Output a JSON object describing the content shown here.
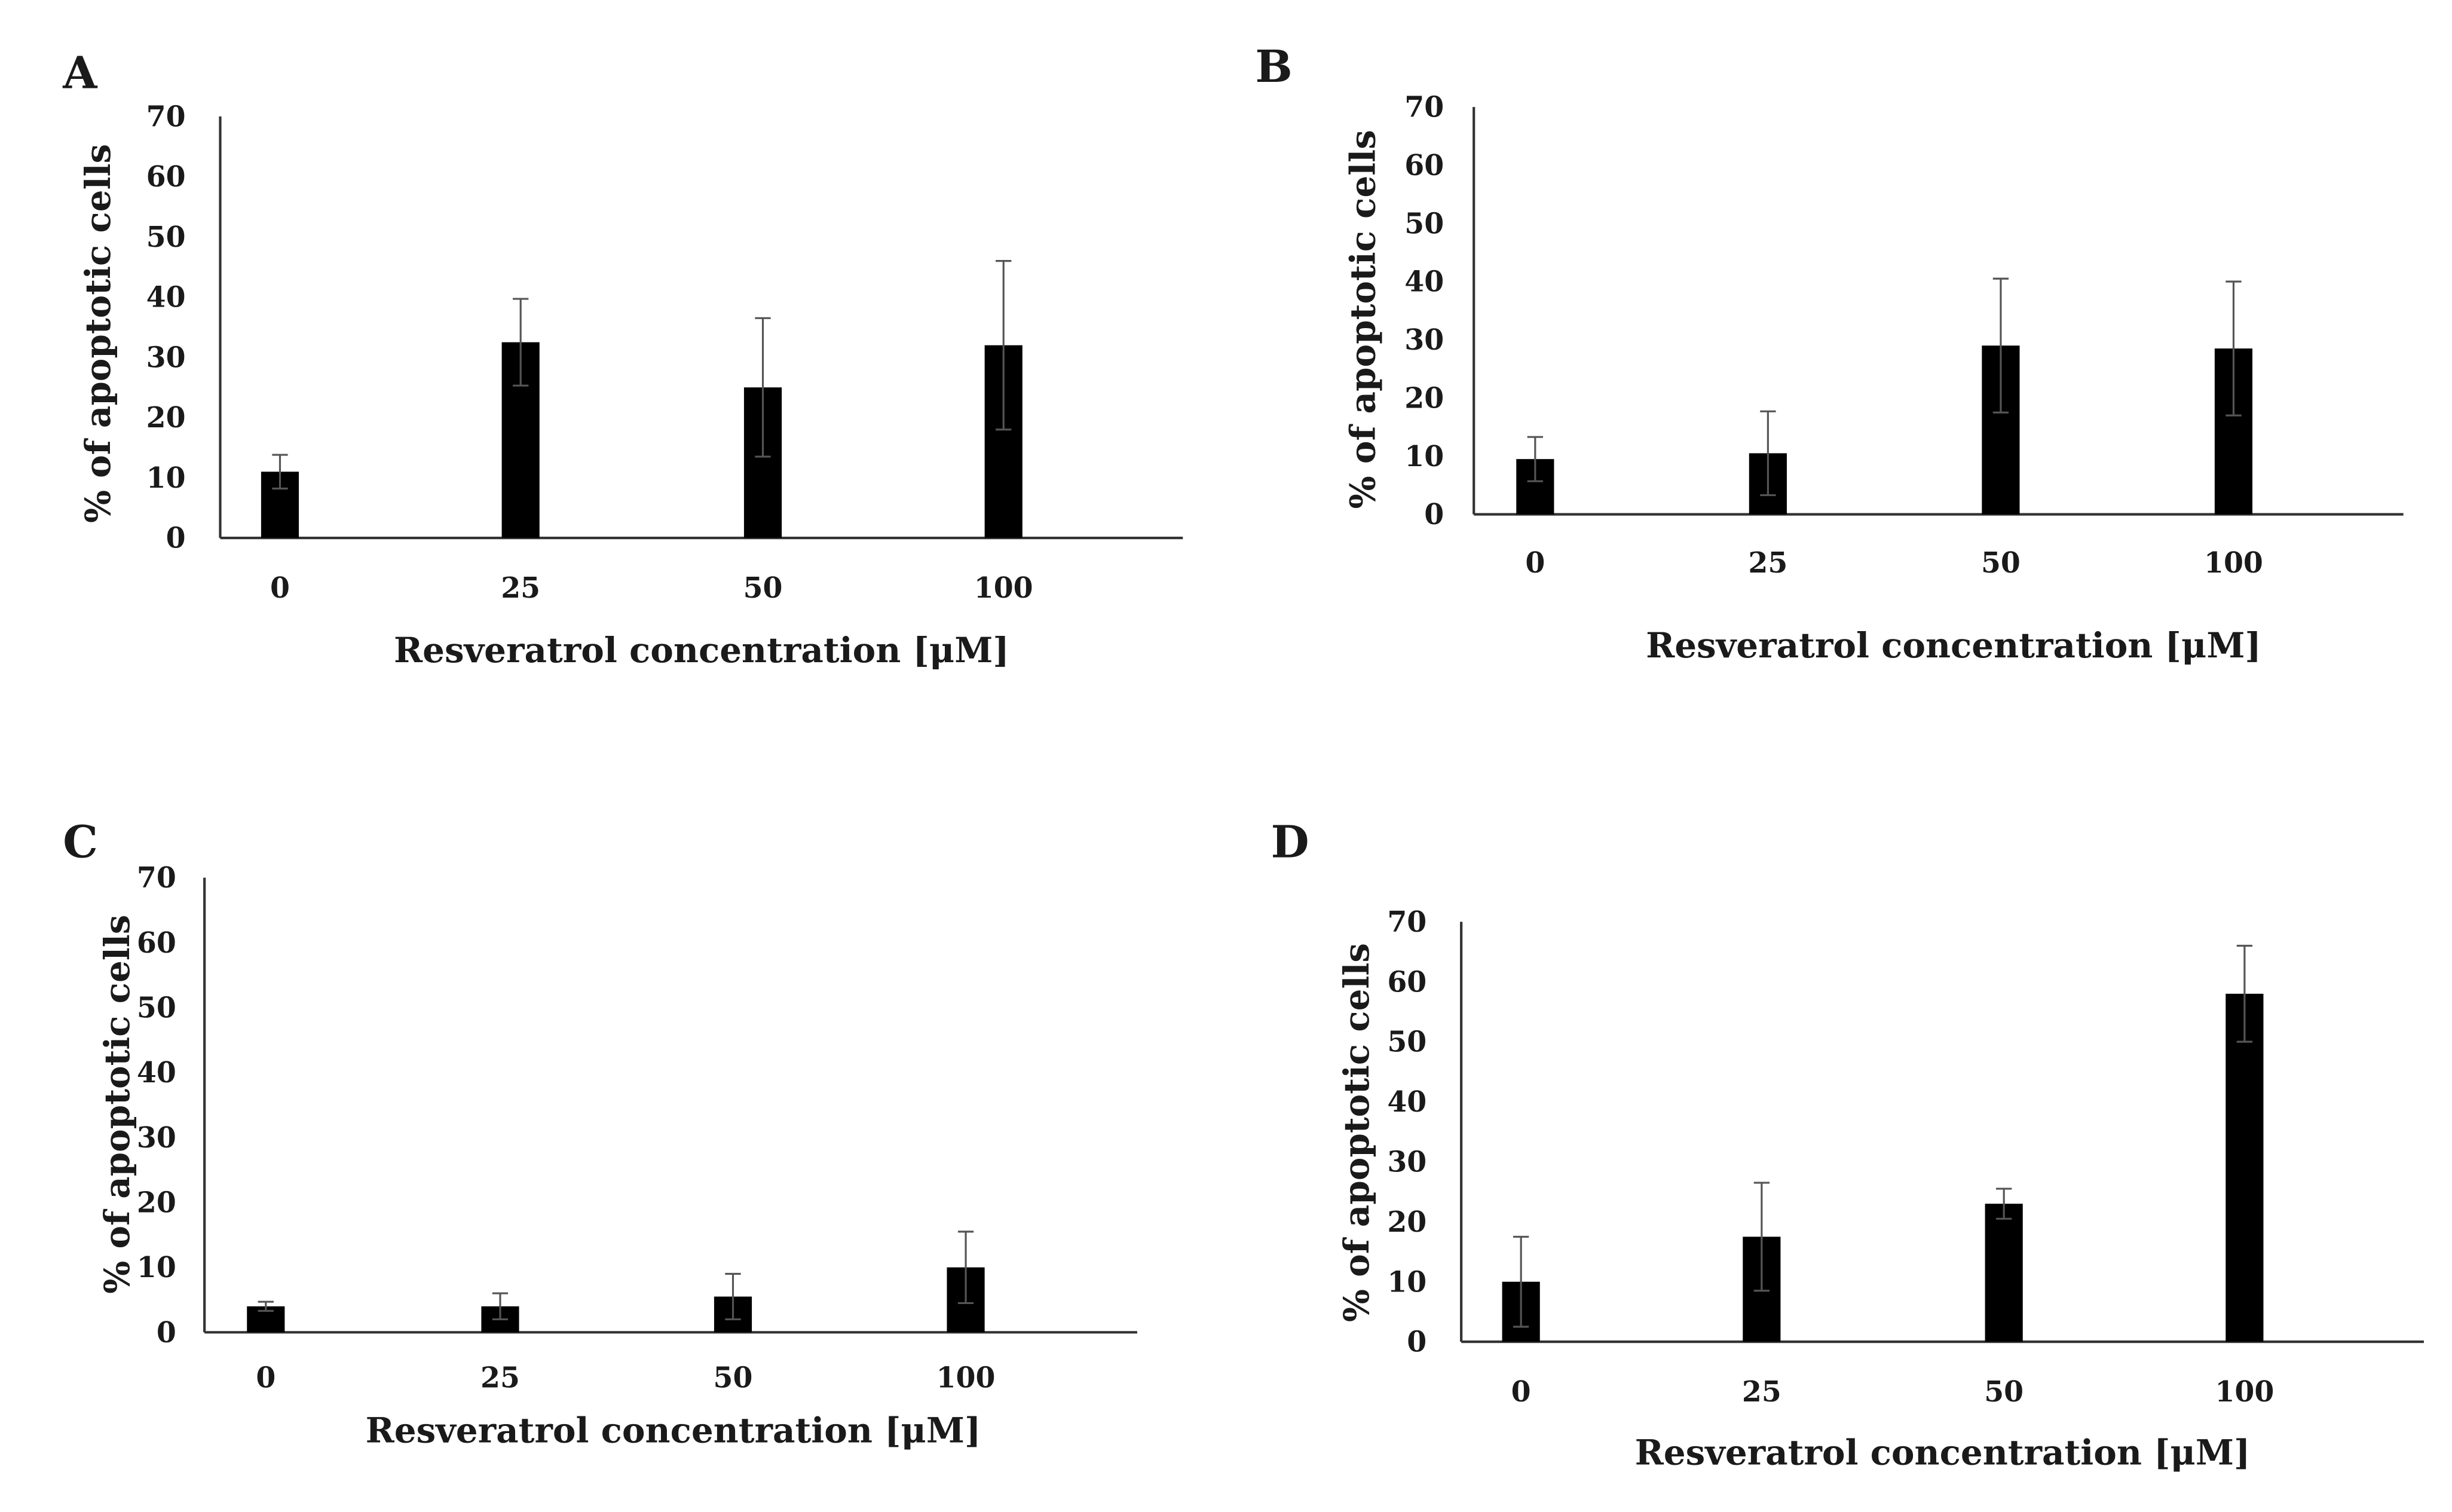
{
  "figure": {
    "bar_color": "#000000",
    "axis_color": "#333333",
    "text_color": "#1a1a1a"
  },
  "chart_data": [
    {
      "panel": "A",
      "type": "bar",
      "categories": [
        "0",
        "25",
        "50",
        "100"
      ],
      "values": [
        11,
        32.5,
        25,
        32
      ],
      "errors": [
        2.8,
        7.2,
        11.5,
        14
      ],
      "ylabel": "% of apoptotic cells",
      "xlabel": "Resveratrol concentration [μM]",
      "ylim": [
        0,
        70
      ],
      "yticks": [
        "0",
        "10",
        "20",
        "30",
        "40",
        "50",
        "60",
        "70"
      ]
    },
    {
      "panel": "B",
      "type": "bar",
      "categories": [
        "0",
        "25",
        "50",
        "100"
      ],
      "values": [
        9.5,
        10.5,
        29,
        28.5
      ],
      "errors": [
        3.8,
        7.2,
        11.5,
        11.5
      ],
      "ylabel": "% of apoptotic cells",
      "xlabel": "Resveratrol concentration [μM]",
      "ylim": [
        0,
        70
      ],
      "yticks": [
        "0",
        "10",
        "20",
        "30",
        "40",
        "50",
        "60",
        "70"
      ]
    },
    {
      "panel": "C",
      "type": "bar",
      "categories": [
        "0",
        "25",
        "50",
        "100"
      ],
      "values": [
        4,
        4,
        5.5,
        10
      ],
      "errors": [
        0.7,
        2,
        3.5,
        5.5
      ],
      "ylabel": "% of apoptotic cells",
      "xlabel": "Resveratrol concentration [μM]",
      "ylim": [
        0,
        70
      ],
      "yticks": [
        "0",
        "10",
        "20",
        "30",
        "40",
        "50",
        "60",
        "70"
      ]
    },
    {
      "panel": "D",
      "type": "bar",
      "categories": [
        "0",
        "25",
        "50",
        "100"
      ],
      "values": [
        10,
        17.5,
        23,
        58
      ],
      "errors": [
        7.5,
        9,
        2.5,
        8
      ],
      "ylabel": "% of apoptotic cells",
      "xlabel": "Resveratrol concentration [μM]",
      "ylim": [
        0,
        70
      ],
      "yticks": [
        "0",
        "10",
        "20",
        "30",
        "40",
        "50",
        "60",
        "70"
      ]
    }
  ]
}
